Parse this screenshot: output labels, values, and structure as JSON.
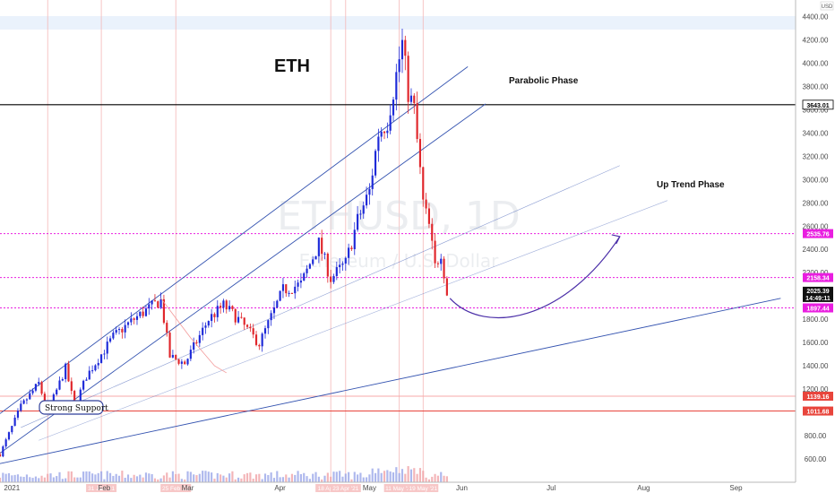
{
  "chart_data": {
    "type": "candlestick",
    "title": "ETH",
    "watermark_symbol": "ETHUSD, 1D",
    "watermark_name": "Ethereum / U.S. Dollar",
    "currency_label": "USD",
    "y_ticks": [
      600,
      800,
      1000,
      1200,
      1400,
      1600,
      1800,
      2000,
      2200,
      2400,
      2600,
      2800,
      3000,
      3200,
      3400,
      3600,
      3800,
      4000,
      4200,
      4400
    ],
    "ylim": [
      400,
      4450
    ],
    "x_ticks": [
      {
        "label": "2021",
        "date": "2021-01-01"
      },
      {
        "label": "Feb",
        "date": "2021-02-01"
      },
      {
        "label": "Mar",
        "date": "2021-03-01"
      },
      {
        "label": "Apr",
        "date": "2021-04-01"
      },
      {
        "label": "May",
        "date": "2021-05-01"
      },
      {
        "label": "Jun",
        "date": "2021-06-01"
      },
      {
        "label": "Jul",
        "date": "2021-07-01"
      },
      {
        "label": "Aug",
        "date": "2021-08-01"
      },
      {
        "label": "Sep",
        "date": "2021-09-01"
      }
    ],
    "xlim": [
      "2020-12-28",
      "2021-09-21"
    ],
    "x_date_tags": [
      "31 Jan '21",
      "25 Feb '21",
      "18 Apr '21",
      "23 Apr '21",
      "11 May '21",
      "19 May '21"
    ],
    "price_path": [
      [
        "2020-12-28",
        640
      ],
      [
        "2021-01-04",
        1050
      ],
      [
        "2021-01-10",
        1250
      ],
      [
        "2021-01-13",
        1000
      ],
      [
        "2021-01-19",
        1380
      ],
      [
        "2021-01-22",
        1050
      ],
      [
        "2021-01-26",
        1310
      ],
      [
        "2021-02-04",
        1650
      ],
      [
        "2021-02-09",
        1760
      ],
      [
        "2021-02-13",
        1840
      ],
      [
        "2021-02-18",
        1930
      ],
      [
        "2021-02-20",
        1960
      ],
      [
        "2021-02-23",
        1480
      ],
      [
        "2021-02-28",
        1420
      ],
      [
        "2021-03-08",
        1800
      ],
      [
        "2021-03-13",
        1920
      ],
      [
        "2021-03-18",
        1800
      ],
      [
        "2021-03-25",
        1590
      ],
      [
        "2021-04-02",
        2050
      ],
      [
        "2021-04-08",
        2100
      ],
      [
        "2021-04-14",
        2450
      ],
      [
        "2021-04-18",
        2150
      ],
      [
        "2021-04-23",
        2280
      ],
      [
        "2021-04-27",
        2650
      ],
      [
        "2021-05-01",
        2900
      ],
      [
        "2021-05-04",
        3400
      ],
      [
        "2021-05-07",
        3500
      ],
      [
        "2021-05-10",
        3900
      ],
      [
        "2021-05-12",
        4170
      ],
      [
        "2021-05-14",
        3750
      ],
      [
        "2021-05-16",
        3600
      ],
      [
        "2021-05-19",
        2800
      ],
      [
        "2021-05-21",
        2600
      ],
      [
        "2021-05-23",
        2250
      ],
      [
        "2021-05-25",
        2380
      ],
      [
        "2021-05-27",
        2025
      ]
    ],
    "horizontal_levels": [
      {
        "price": 3643.01,
        "label": "3643.01",
        "style": "solid",
        "color": "#000000"
      },
      {
        "price": 2535.76,
        "label": "2535.76",
        "style": "dotted",
        "color": "#e91ee0"
      },
      {
        "price": 2158.34,
        "label": "2158.34",
        "style": "dotted",
        "color": "#e91ee0"
      },
      {
        "price": 1897.44,
        "label": "1897.44",
        "style": "dotted",
        "color": "#e91ee0"
      },
      {
        "price": 1139.16,
        "label": "1139.16",
        "style": "solid",
        "color": "#f7a8a8"
      },
      {
        "price": 1011.68,
        "label": "1011.68",
        "style": "solid",
        "color": "#e8453c"
      }
    ],
    "current_price": {
      "value": "2025.39",
      "countdown": "14:49:11"
    },
    "annotations": {
      "parabolic_phase": "Parabolic Phase",
      "up_trend_phase": "Up Trend Phase",
      "strong_support": "Strong Support"
    },
    "colors": {
      "up": "#1e2ad8",
      "down": "#e0262b",
      "channel": "#3453b0",
      "arrow": "#4b2fa8",
      "level": "#e91ee0"
    }
  }
}
